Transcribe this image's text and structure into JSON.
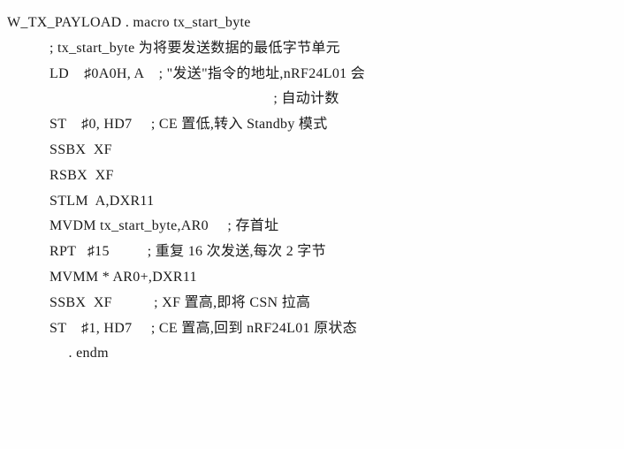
{
  "header": "W_TX_PAYLOAD . macro tx_start_byte",
  "lines": [
    "; tx_start_byte 为将要发送数据的最低字节单元",
    "LD    ♯0A0H, A    ; \"发送\"指令的地址,nRF24L01 会",
    "                  ; 自动计数",
    "ST    ♯0, HD7     ; CE 置低,转入 Standby 模式",
    "SSBX  XF",
    "RSBX  XF",
    "STLM  A,DXR11",
    "MVDM tx_start_byte,AR0     ; 存首址",
    "RPT   ♯15          ; 重复 16 次发送,每次 2 字节",
    "MVMM * AR0+,DXR11",
    "SSBX  XF           ; XF 置高,即将 CSN 拉高",
    "ST    ♯1, HD7     ; CE 置高,回到 nRF24L01 原状态",
    "     . endm"
  ],
  "line_extra_indent": [
    false,
    false,
    true,
    false,
    false,
    false,
    false,
    false,
    false,
    false,
    false,
    false,
    false
  ],
  "text_color": "#1a1a1a",
  "background_color": "#fefefe",
  "font_size": 16
}
